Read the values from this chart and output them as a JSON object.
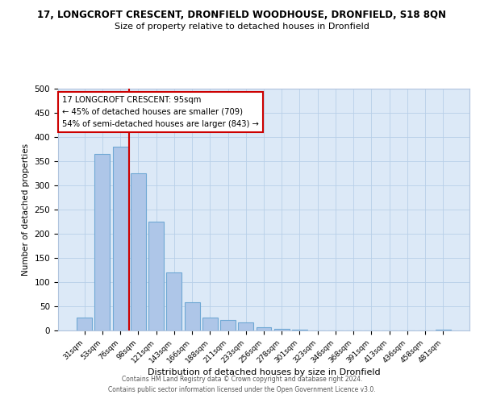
{
  "title_line1": "17, LONGCROFT CRESCENT, DRONFIELD WOODHOUSE, DRONFIELD, S18 8QN",
  "title_line2": "Size of property relative to detached houses in Dronfield",
  "xlabel": "Distribution of detached houses by size in Dronfield",
  "ylabel": "Number of detached properties",
  "bar_labels": [
    "31sqm",
    "53sqm",
    "76sqm",
    "98sqm",
    "121sqm",
    "143sqm",
    "166sqm",
    "188sqm",
    "211sqm",
    "233sqm",
    "256sqm",
    "278sqm",
    "301sqm",
    "323sqm",
    "346sqm",
    "368sqm",
    "391sqm",
    "413sqm",
    "436sqm",
    "458sqm",
    "481sqm"
  ],
  "bar_values": [
    27,
    365,
    380,
    325,
    225,
    120,
    58,
    27,
    22,
    17,
    7,
    3,
    2,
    0,
    0,
    0,
    0,
    0,
    0,
    0,
    2
  ],
  "bar_color": "#aec6e8",
  "bar_edge_color": "#6fa8d4",
  "background_color": "#dce9f7",
  "property_label": "17 LONGCROFT CRESCENT: 95sqm",
  "annotation_line1": "← 45% of detached houses are smaller (709)",
  "annotation_line2": "54% of semi-detached houses are larger (843) →",
  "vline_x_index": 2.5,
  "vline_color": "#cc0000",
  "ylim": [
    0,
    500
  ],
  "yticks": [
    0,
    50,
    100,
    150,
    200,
    250,
    300,
    350,
    400,
    450,
    500
  ],
  "footer_line1": "Contains HM Land Registry data © Crown copyright and database right 2024.",
  "footer_line2": "Contains public sector information licensed under the Open Government Licence v3.0."
}
